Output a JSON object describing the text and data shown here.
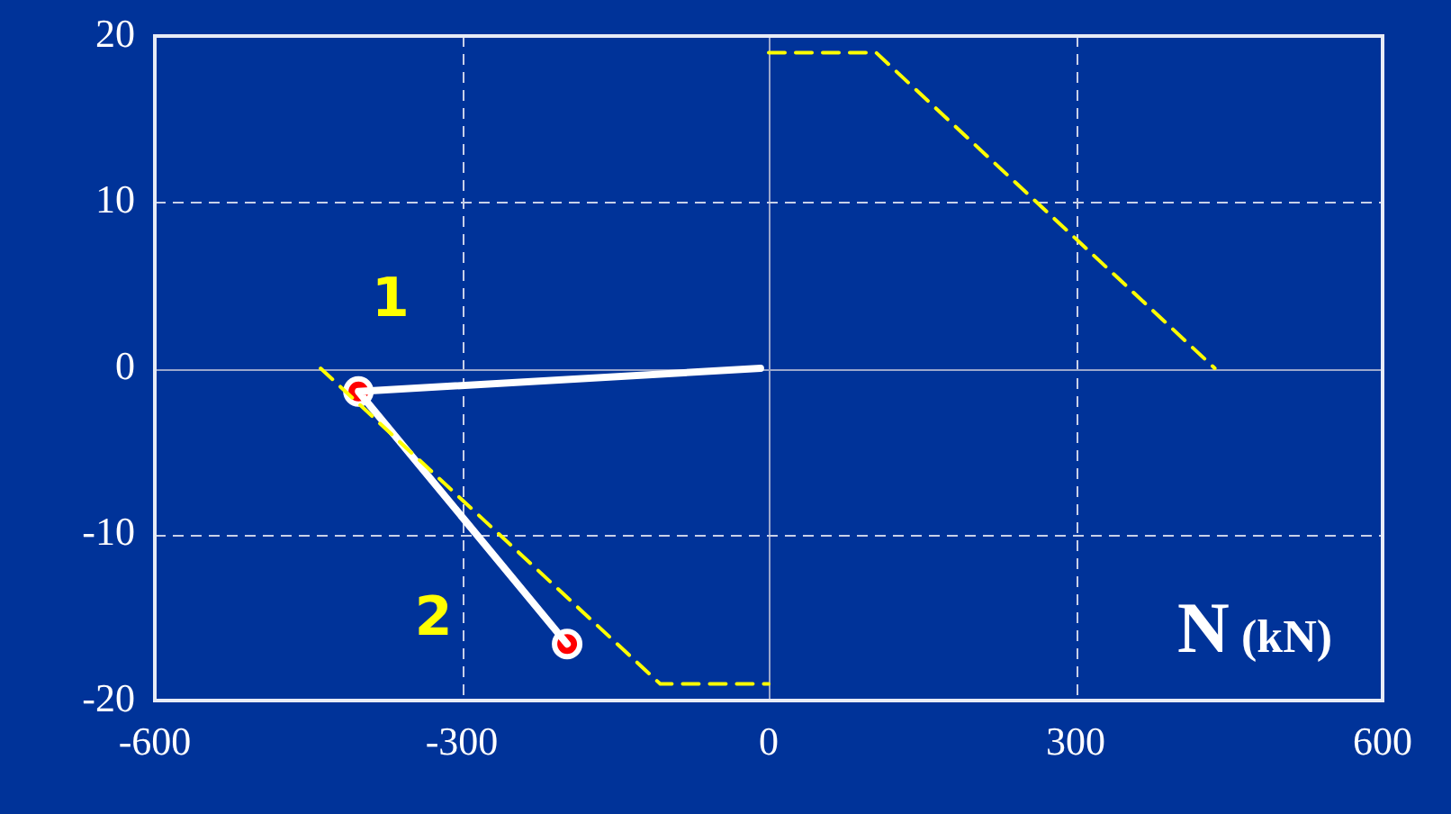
{
  "chart_data": {
    "type": "line",
    "xlabel": "N (kN)",
    "xlim": [
      -600,
      600
    ],
    "xticks": [
      -600,
      -300,
      0,
      300,
      600
    ],
    "ylim": [
      -20,
      20
    ],
    "yticks": [
      -20,
      -10,
      0,
      10,
      20
    ],
    "grid": true,
    "legend": false,
    "series": [
      {
        "color": "#ffff00",
        "line_style": "dashed",
        "marker": "none",
        "x": [
          0,
          105,
          436
        ],
        "values": [
          19,
          19,
          0
        ]
      },
      {
        "color": "#ffff00",
        "line_style": "dashed",
        "marker": "none",
        "x": [
          -438,
          -106,
          0
        ],
        "values": [
          0,
          -19,
          -19
        ]
      },
      {
        "color": "#ffffff",
        "line_style": "solid",
        "marker": "none",
        "x": [
          -8,
          -401,
          -197
        ],
        "values": [
          0,
          -1.4,
          -16.6
        ]
      },
      {
        "type": "scatter",
        "color": "#ff0000",
        "marker": "circle",
        "x": [
          -401,
          -197
        ],
        "values": [
          -1.4,
          -16.6
        ]
      }
    ],
    "annotations": [
      "1",
      "2"
    ]
  }
}
